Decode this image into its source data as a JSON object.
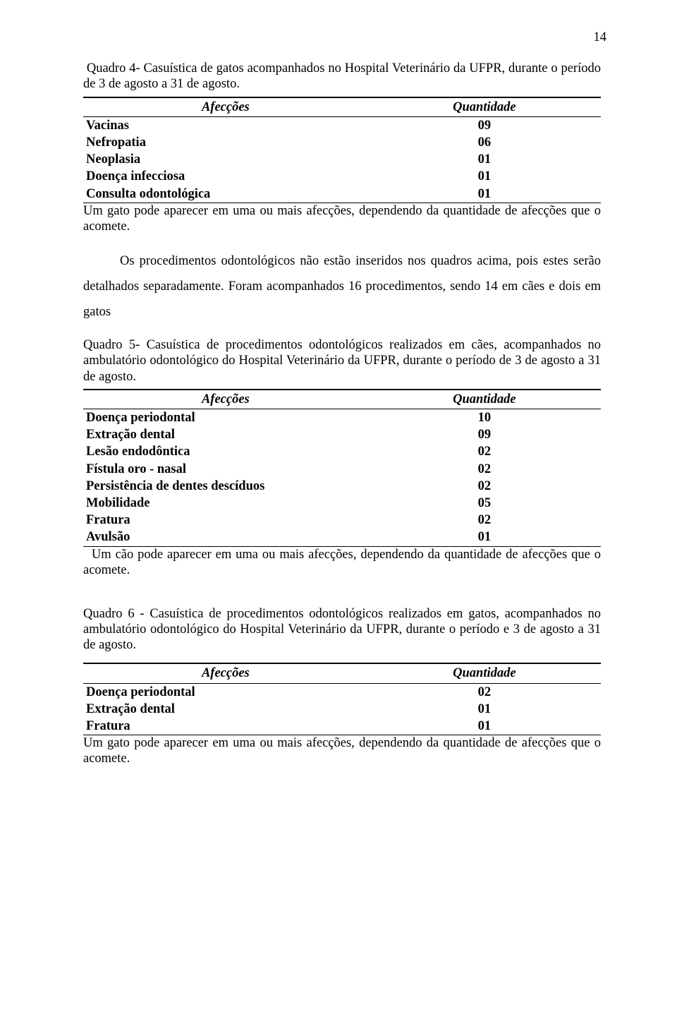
{
  "page_number": "14",
  "q4": {
    "caption": " Quadro 4- Casuística de gatos acompanhados no Hospital Veterinário da UFPR, durante o período de 3 de agosto a 31 de agosto.",
    "header_l": "Afecções",
    "header_r": "Quantidade",
    "rows": [
      {
        "label": "Vacinas",
        "val": "09"
      },
      {
        "label": "Nefropatia",
        "val": "06"
      },
      {
        "label": "Neoplasia",
        "val": "01"
      },
      {
        "label": "Doença infecciosa",
        "val": "01"
      },
      {
        "label": "Consulta odontológica",
        "val": "01"
      }
    ],
    "footnote": "Um gato pode aparecer em uma ou mais afecções, dependendo da quantidade de afecções que o acomete."
  },
  "para1": "Os procedimentos odontológicos não estão inseridos nos quadros acima, pois estes serão detalhados separadamente. Foram acompanhados 16 procedimentos, sendo 14 em cães e dois em gatos",
  "q5": {
    "caption": "Quadro 5- Casuística de procedimentos odontológicos realizados em cães, acompanhados no ambulatório odontológico do Hospital Veterinário da UFPR, durante o período de 3 de agosto a 31 de agosto.",
    "header_l": "Afecções",
    "header_r": "Quantidade",
    "rows": [
      {
        "label": "Doença periodontal",
        "val": "10"
      },
      {
        "label": "Extração dental",
        "val": "09"
      },
      {
        "label": "Lesão endodôntica",
        "val": "02"
      },
      {
        "label": "Fístula oro - nasal",
        "val": "02"
      },
      {
        "label": "Persistência de dentes descíduos",
        "val": "02"
      },
      {
        "label": "Mobilidade",
        "val": "05"
      },
      {
        "label": "Fratura",
        "val": "02"
      },
      {
        "label": "Avulsão",
        "val": "01"
      }
    ],
    "footnote": " Um cão pode aparecer em uma ou mais afecções, dependendo da quantidade de afecções que o acomete."
  },
  "q6": {
    "caption": "Quadro 6 - Casuística de procedimentos odontológicos realizados em gatos, acompanhados no ambulatório odontológico do Hospital Veterinário da UFPR, durante o período e 3 de agosto a 31 de agosto.",
    "header_l": "Afecções",
    "header_r": "Quantidade",
    "rows": [
      {
        "label": "Doença periodontal",
        "val": "02"
      },
      {
        "label": "Extração dental",
        "val": "01"
      },
      {
        "label": "Fratura",
        "val": "01"
      }
    ],
    "footnote": "Um gato pode aparecer em uma ou mais afecções, dependendo da quantidade de afecções que o acomete."
  },
  "style": {
    "text_color": "#000000",
    "bg_color": "#ffffff",
    "rule_heavy": "2.2px",
    "rule_light": "1.4px",
    "body_fontsize_pt": 14,
    "font_family": "Times New Roman"
  }
}
